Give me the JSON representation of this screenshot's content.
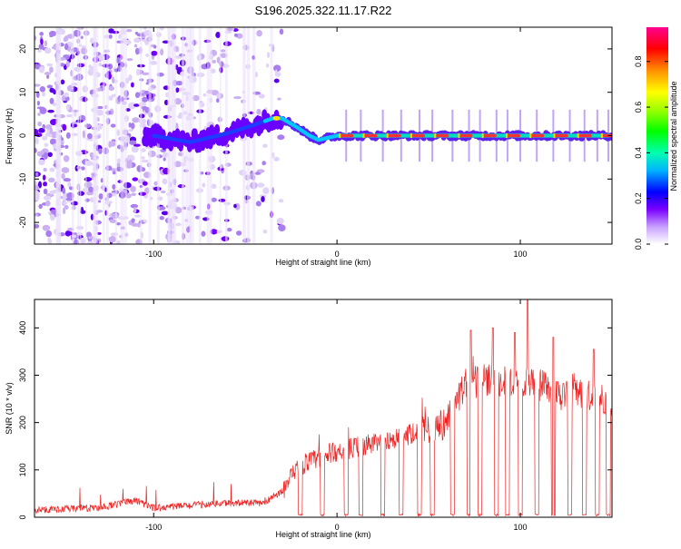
{
  "title": "S196.2025.322.11.17.R22",
  "colors": {
    "snr_line": "#ee2222",
    "purple": "#8000ff",
    "light_purple": "#d9c8f5",
    "core_red": "#ff3030"
  },
  "chart_data": [
    {
      "type": "heatmap",
      "name": "spectrogram",
      "xlabel": "Height of straight line (km)",
      "ylabel": "Frequency (Hz)",
      "xlim": [
        -165,
        150
      ],
      "ylim": [
        -25,
        25
      ],
      "xticks": [
        -100,
        0,
        100
      ],
      "xtick_labels": [
        "-100",
        "0",
        "100"
      ],
      "yticks": [
        -20,
        -10,
        0,
        10,
        20
      ],
      "ytick_labels": [
        "-20",
        "-10",
        "0",
        "10",
        "20"
      ],
      "colorbar": {
        "label": "Normalized spectral amplitude",
        "range": [
          0,
          0.95
        ],
        "ticks": [
          0.0,
          0.2,
          0.4,
          0.6,
          0.8
        ],
        "tick_labels": [
          "0.0",
          "0.2",
          "0.4",
          "0.6",
          "0.8"
        ]
      },
      "signal_track": [
        {
          "x": -100,
          "y": 0.0
        },
        {
          "x": -80,
          "y": -1.5
        },
        {
          "x": -60,
          "y": 0.5
        },
        {
          "x": -45,
          "y": 2.5
        },
        {
          "x": -35,
          "y": 4.0
        },
        {
          "x": -30,
          "y": 4.0
        },
        {
          "x": -22,
          "y": 2.0
        },
        {
          "x": -15,
          "y": 0.0
        },
        {
          "x": -10,
          "y": -1.0
        },
        {
          "x": 0,
          "y": 0.0
        },
        {
          "x": 150,
          "y": 0.0
        }
      ]
    },
    {
      "type": "line",
      "name": "snr",
      "xlabel": "Height of straight line (km)",
      "ylabel": "SNR (10 * v/v)",
      "xlim": [
        -165,
        150
      ],
      "ylim": [
        0,
        460
      ],
      "xticks": [
        -100,
        0,
        100
      ],
      "xtick_labels": [
        "-100",
        "0",
        "100"
      ],
      "yticks": [
        0,
        100,
        200,
        300,
        400
      ],
      "ytick_labels": [
        "0",
        "100",
        "200",
        "300",
        "400"
      ],
      "trend_x": [
        -165,
        -130,
        -110,
        -100,
        -60,
        -40,
        -30,
        -20,
        0,
        20,
        40,
        60,
        70,
        80,
        100,
        110,
        120,
        140,
        150
      ],
      "trend_y": [
        15,
        20,
        35,
        20,
        30,
        30,
        55,
        110,
        140,
        155,
        175,
        200,
        280,
        290,
        285,
        280,
        260,
        255,
        250
      ],
      "dropouts_x": [
        -20,
        -8,
        5,
        13,
        25,
        35,
        45,
        52,
        63,
        72,
        78,
        87,
        93,
        100,
        109,
        118,
        127,
        135,
        142,
        148
      ],
      "peaks": [
        {
          "x": 73,
          "y": 395
        },
        {
          "x": 85,
          "y": 400
        },
        {
          "x": 104,
          "y": 460
        },
        {
          "x": 97,
          "y": 390
        },
        {
          "x": 118,
          "y": 380
        },
        {
          "x": 140,
          "y": 355
        }
      ]
    }
  ]
}
